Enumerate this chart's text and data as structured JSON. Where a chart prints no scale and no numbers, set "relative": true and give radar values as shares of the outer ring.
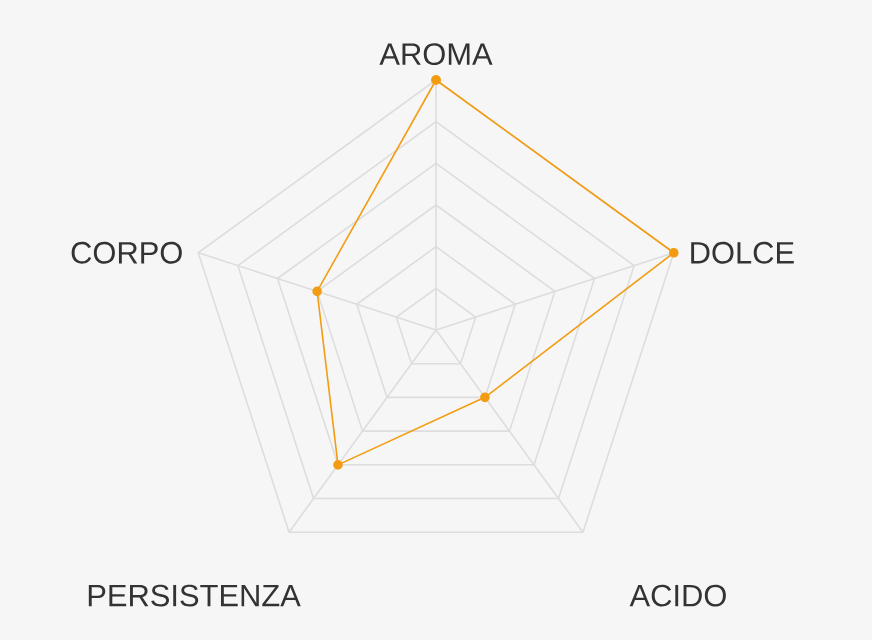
{
  "chart_data": {
    "type": "radar",
    "relative": true,
    "grid": true,
    "marker": "circle",
    "categories": [
      "AROMA",
      "DOLCE",
      "ACIDO",
      "PERSISTENZA",
      "CORPO"
    ],
    "series": [
      {
        "color": "#f39c12",
        "values": [
          1,
          1,
          0.333,
          0.667,
          0.5
        ]
      }
    ]
  }
}
